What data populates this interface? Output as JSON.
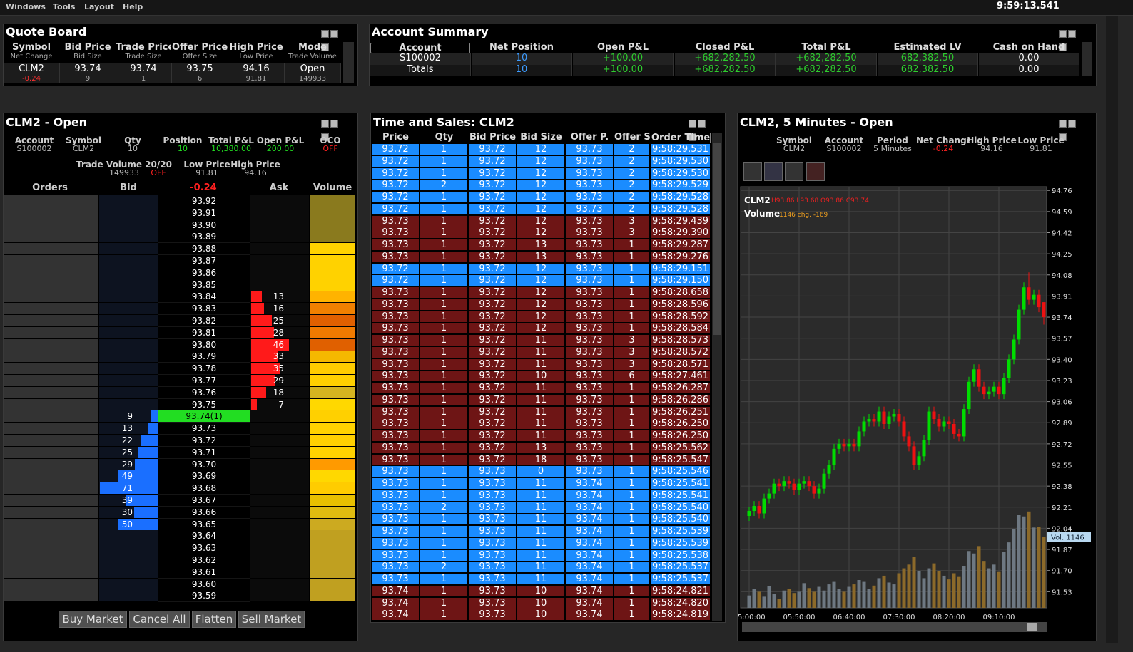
{
  "menu": {
    "items": [
      "Windows",
      "Tools",
      "Layout",
      "Help"
    ],
    "clock": "9:59:13.541"
  },
  "quote_board": {
    "title": "Quote Board",
    "headers": [
      [
        "Symbol",
        "Net Change"
      ],
      [
        "Bid Price",
        "Bid Size"
      ],
      [
        "Trade Price",
        "Trade Size"
      ],
      [
        "Offer Price",
        "Offer Size"
      ],
      [
        "High Price",
        "Low Price"
      ],
      [
        "Mode",
        "Trade Volume"
      ]
    ],
    "row": [
      [
        "CLM2",
        "-0.24"
      ],
      [
        "93.74",
        "9"
      ],
      [
        "93.74",
        "1"
      ],
      [
        "93.75",
        "6"
      ],
      [
        "94.16",
        "91.81"
      ],
      [
        "Open",
        "149933"
      ]
    ]
  },
  "account_summary": {
    "title": "Account Summary",
    "headers": [
      "Account",
      "Net Position",
      "Open P&L",
      "Closed P&L",
      "Total P&L",
      "Estimated LV",
      "Cash on Hand"
    ],
    "rows": [
      [
        "S100002",
        "10",
        "+100.00",
        "+682,282.50",
        "+682,282.50",
        "682,382.50",
        "0.00"
      ],
      [
        "Totals",
        "10",
        "+100.00",
        "+682,282.50",
        "+682,282.50",
        "682,382.50",
        "0.00"
      ]
    ],
    "colors": [
      "#ffffff",
      "#3d9cff",
      "#2ecc2e",
      "#2ecc2e",
      "#2ecc2e",
      "#2ecc2e",
      "#ffffff"
    ]
  },
  "dom": {
    "title": "CLM2 - Open",
    "fields": [
      {
        "label": "Account",
        "value": "S100002",
        "color": "#bbbbbb"
      },
      {
        "label": "Symbol",
        "value": "CLM2",
        "color": "#bbbbbb"
      },
      {
        "label": "Qty",
        "value": "10",
        "color": "#bbbbbb"
      },
      {
        "label": "Position",
        "value": "10",
        "color": "#22dd22"
      },
      {
        "label": "Total P&L",
        "value": "10,380.00",
        "color": "#22dd22"
      },
      {
        "label": "Open P&L",
        "value": "200.00",
        "color": "#22dd22"
      },
      {
        "label": "OCO",
        "value": "OFF",
        "color": "#ff2020"
      }
    ],
    "fields2": [
      {
        "label": "Trade Volume 20/20",
        "value": "149933",
        "color": "#bbbbbb"
      },
      {
        "label": "Low Price",
        "value": "91.81",
        "color": "#bbbbbb"
      },
      {
        "label": "High Price",
        "value": "94.16",
        "color": "#bbbbbb"
      }
    ],
    "trade_volume_state": "OFF",
    "columns": [
      "Orders",
      "Bid",
      "-0.24",
      "Ask",
      "Volume"
    ],
    "prices": [
      "93.92",
      "93.91",
      "93.90",
      "93.89",
      "93.88",
      "93.87",
      "93.86",
      "93.85",
      "93.84",
      "93.83",
      "93.82",
      "93.81",
      "93.80",
      "93.79",
      "93.78",
      "93.77",
      "93.76",
      "93.75",
      "93.74(1)",
      "93.73",
      "93.72",
      "93.71",
      "93.70",
      "93.69",
      "93.68",
      "93.67",
      "93.66",
      "93.65",
      "93.64",
      "93.63",
      "93.62",
      "93.61",
      "93.60",
      "93.59"
    ],
    "bid_sizes": [
      null,
      null,
      null,
      null,
      null,
      null,
      null,
      null,
      null,
      null,
      null,
      null,
      null,
      null,
      null,
      null,
      null,
      null,
      9,
      13,
      22,
      25,
      29,
      49,
      71,
      39,
      30,
      50,
      null,
      null,
      null,
      null,
      null,
      null
    ],
    "ask_sizes": [
      null,
      null,
      null,
      null,
      null,
      null,
      null,
      null,
      13,
      16,
      25,
      28,
      46,
      33,
      35,
      29,
      18,
      7,
      null,
      null,
      null,
      null,
      null,
      null,
      null,
      null,
      null,
      null,
      null,
      null,
      null,
      null,
      null,
      null
    ],
    "volume_colors": [
      "#8a7a1e",
      "#8a7a1e",
      "#8a7a1e",
      "#8a7a1e",
      "#ffd200",
      "#ffd200",
      "#ffd200",
      "#ffd200",
      "#ffb300",
      "#f08000",
      "#e06000",
      "#f07a00",
      "#e06000",
      "#f5b800",
      "#ffcc00",
      "#ffd000",
      "#d4b420",
      "#ffd800",
      "#ffd000",
      "#ffd200",
      "#ffd000",
      "#ffd200",
      "#ff9a00",
      "#ffd800",
      "#ffcc00",
      "#e8c000",
      "#e0bc10",
      "#ccaa20",
      "#c0a020",
      "#c0a020",
      "#c0a020",
      "#c0a020",
      "#c0a020",
      "#c0a020"
    ],
    "buttons": [
      "Buy Market",
      "Cancel All",
      "Flatten",
      "Sell Market"
    ]
  },
  "time_and_sales": {
    "title": "Time and Sales: CLM2",
    "headers": [
      "Price",
      "Qty",
      "Bid Price",
      "Bid Size",
      "Offer P.",
      "Offer Sz",
      "Order Time"
    ],
    "rows": [
      [
        "93.72",
        "1",
        "93.72",
        "12",
        "93.73",
        "2",
        "9:58:29.531"
      ],
      [
        "93.72",
        "1",
        "93.72",
        "12",
        "93.73",
        "2",
        "9:58:29.530"
      ],
      [
        "93.72",
        "1",
        "93.72",
        "12",
        "93.73",
        "2",
        "9:58:29.530"
      ],
      [
        "93.72",
        "2",
        "93.72",
        "12",
        "93.73",
        "2",
        "9:58:29.529"
      ],
      [
        "93.72",
        "1",
        "93.72",
        "12",
        "93.73",
        "2",
        "9:58:29.528"
      ],
      [
        "93.72",
        "1",
        "93.72",
        "12",
        "93.73",
        "2",
        "9:58:29.528"
      ],
      [
        "93.73",
        "1",
        "93.72",
        "12",
        "93.73",
        "3",
        "9:58:29.439"
      ],
      [
        "93.73",
        "1",
        "93.72",
        "12",
        "93.73",
        "3",
        "9:58:29.390"
      ],
      [
        "93.73",
        "1",
        "93.72",
        "13",
        "93.73",
        "1",
        "9:58:29.287"
      ],
      [
        "93.73",
        "1",
        "93.72",
        "13",
        "93.73",
        "1",
        "9:58:29.276"
      ],
      [
        "93.72",
        "1",
        "93.72",
        "12",
        "93.73",
        "1",
        "9:58:29.151"
      ],
      [
        "93.72",
        "1",
        "93.72",
        "12",
        "93.73",
        "1",
        "9:58:29.150"
      ],
      [
        "93.73",
        "1",
        "93.72",
        "12",
        "93.73",
        "1",
        "9:58:28.658"
      ],
      [
        "93.73",
        "1",
        "93.72",
        "12",
        "93.73",
        "1",
        "9:58:28.596"
      ],
      [
        "93.73",
        "1",
        "93.72",
        "12",
        "93.73",
        "1",
        "9:58:28.592"
      ],
      [
        "93.73",
        "1",
        "93.72",
        "12",
        "93.73",
        "1",
        "9:58:28.584"
      ],
      [
        "93.73",
        "1",
        "93.72",
        "11",
        "93.73",
        "3",
        "9:58:28.573"
      ],
      [
        "93.73",
        "1",
        "93.72",
        "11",
        "93.73",
        "3",
        "9:58:28.572"
      ],
      [
        "93.73",
        "1",
        "93.72",
        "11",
        "93.73",
        "3",
        "9:58:28.571"
      ],
      [
        "93.73",
        "1",
        "93.72",
        "10",
        "93.73",
        "6",
        "9:58:27.461"
      ],
      [
        "93.73",
        "1",
        "93.72",
        "11",
        "93.73",
        "1",
        "9:58:26.287"
      ],
      [
        "93.73",
        "1",
        "93.72",
        "11",
        "93.73",
        "1",
        "9:58:26.286"
      ],
      [
        "93.73",
        "1",
        "93.72",
        "11",
        "93.73",
        "1",
        "9:58:26.251"
      ],
      [
        "93.73",
        "1",
        "93.72",
        "11",
        "93.73",
        "1",
        "9:58:26.250"
      ],
      [
        "93.73",
        "1",
        "93.72",
        "11",
        "93.73",
        "1",
        "9:58:26.250"
      ],
      [
        "93.73",
        "1",
        "93.72",
        "13",
        "93.73",
        "1",
        "9:58:25.562"
      ],
      [
        "93.73",
        "1",
        "93.72",
        "18",
        "93.73",
        "1",
        "9:58:25.547"
      ],
      [
        "93.73",
        "1",
        "93.73",
        "0",
        "93.73",
        "1",
        "9:58:25.546"
      ],
      [
        "93.73",
        "1",
        "93.73",
        "11",
        "93.74",
        "1",
        "9:58:25.541"
      ],
      [
        "93.73",
        "1",
        "93.73",
        "11",
        "93.74",
        "1",
        "9:58:25.541"
      ],
      [
        "93.73",
        "2",
        "93.73",
        "11",
        "93.74",
        "1",
        "9:58:25.540"
      ],
      [
        "93.73",
        "1",
        "93.73",
        "11",
        "93.74",
        "1",
        "9:58:25.540"
      ],
      [
        "93.73",
        "1",
        "93.73",
        "11",
        "93.74",
        "1",
        "9:58:25.539"
      ],
      [
        "93.73",
        "1",
        "93.73",
        "11",
        "93.74",
        "1",
        "9:58:25.539"
      ],
      [
        "93.73",
        "1",
        "93.73",
        "11",
        "93.74",
        "1",
        "9:58:25.538"
      ],
      [
        "93.73",
        "2",
        "93.73",
        "11",
        "93.74",
        "1",
        "9:58:25.537"
      ],
      [
        "93.73",
        "1",
        "93.73",
        "11",
        "93.74",
        "1",
        "9:58:25.537"
      ],
      [
        "93.74",
        "1",
        "93.73",
        "10",
        "93.74",
        "1",
        "9:58:24.821"
      ],
      [
        "93.74",
        "1",
        "93.73",
        "10",
        "93.74",
        "1",
        "9:58:24.820"
      ],
      [
        "93.74",
        "1",
        "93.73",
        "10",
        "93.74",
        "1",
        "9:58:24.819"
      ]
    ]
  },
  "chart_data": {
    "type": "candlestick",
    "title": "CLM2, 5 Minutes - Open",
    "fields": [
      {
        "label": "Symbol",
        "value": "CLM2",
        "color": "#bbbbbb"
      },
      {
        "label": "Account",
        "value": "S100002",
        "color": "#bbbbbb"
      },
      {
        "label": "Period",
        "value": "5 Minutes",
        "color": "#bbbbbb"
      },
      {
        "label": "Net Change",
        "value": "-0.24",
        "color": "#ff2020"
      },
      {
        "label": "High Price",
        "value": "94.16",
        "color": "#bbbbbb"
      },
      {
        "label": "Low Price",
        "value": "91.81",
        "color": "#bbbbbb"
      }
    ],
    "legend": {
      "symbol": "CLM2",
      "ohlc": "H93.86 L93.68 O93.86 C93.74",
      "volume": "Volume",
      "volume_info": "1146 chg. -169"
    },
    "categories": [
      "5:00:00",
      null,
      null,
      null,
      null,
      null,
      null,
      null,
      null,
      null,
      "05:50:00",
      null,
      null,
      null,
      null,
      null,
      null,
      null,
      null,
      null,
      "06:40:00",
      null,
      null,
      null,
      null,
      null,
      null,
      null,
      null,
      null,
      "07:30:00",
      null,
      null,
      null,
      null,
      null,
      null,
      null,
      null,
      null,
      "08:20:00",
      null,
      null,
      null,
      null,
      null,
      null,
      null,
      null,
      null,
      "09:10:00",
      null,
      null,
      null,
      null,
      null,
      null,
      null,
      null,
      null
    ],
    "open": [
      92.14,
      92.18,
      92.22,
      92.16,
      92.28,
      92.32,
      92.4,
      92.38,
      92.42,
      92.4,
      92.35,
      92.4,
      92.42,
      92.38,
      92.32,
      92.36,
      92.48,
      92.55,
      92.68,
      92.72,
      92.7,
      92.72,
      92.7,
      92.82,
      92.9,
      92.92,
      92.9,
      92.98,
      92.88,
      92.94,
      92.96,
      92.9,
      92.78,
      92.7,
      92.55,
      92.62,
      92.75,
      92.98,
      92.92,
      92.86,
      92.9,
      92.88,
      92.8,
      92.78,
      93.0,
      93.22,
      93.32,
      93.18,
      93.12,
      93.14,
      93.18,
      93.12,
      93.25,
      93.4,
      93.56,
      93.8,
      93.98,
      93.88,
      93.92,
      93.86
    ],
    "high": [
      92.21,
      92.26,
      92.26,
      92.32,
      92.36,
      92.44,
      92.44,
      92.46,
      92.46,
      92.44,
      92.44,
      92.46,
      92.46,
      92.42,
      92.4,
      92.52,
      92.59,
      92.72,
      92.76,
      92.76,
      92.76,
      92.76,
      92.86,
      92.94,
      92.96,
      92.96,
      93.02,
      93.02,
      92.98,
      93.0,
      93.0,
      92.94,
      92.82,
      92.74,
      92.66,
      92.79,
      93.02,
      93.02,
      92.96,
      92.94,
      92.94,
      92.92,
      92.84,
      93.04,
      93.26,
      93.36,
      93.36,
      93.22,
      93.18,
      93.22,
      93.22,
      93.29,
      93.44,
      93.6,
      93.84,
      94.02,
      94.1,
      93.96,
      93.96,
      93.86
    ],
    "low": [
      92.1,
      92.14,
      92.12,
      92.12,
      92.24,
      92.28,
      92.34,
      92.34,
      92.36,
      92.31,
      92.31,
      92.36,
      92.34,
      92.28,
      92.28,
      92.32,
      92.44,
      92.51,
      92.64,
      92.66,
      92.66,
      92.66,
      92.66,
      92.78,
      92.86,
      92.86,
      92.86,
      92.84,
      92.84,
      92.9,
      92.86,
      92.74,
      92.66,
      92.51,
      92.51,
      92.58,
      92.71,
      92.88,
      92.82,
      92.82,
      92.84,
      92.76,
      92.74,
      92.74,
      92.96,
      93.18,
      93.14,
      93.08,
      93.08,
      93.1,
      93.08,
      93.08,
      93.21,
      93.36,
      93.52,
      93.76,
      93.84,
      93.84,
      93.78,
      93.68
    ],
    "close": [
      92.18,
      92.22,
      92.16,
      92.28,
      92.32,
      92.4,
      92.38,
      92.42,
      92.4,
      92.35,
      92.4,
      92.42,
      92.38,
      92.32,
      92.36,
      92.48,
      92.55,
      92.68,
      92.72,
      92.7,
      92.72,
      92.7,
      92.82,
      92.9,
      92.92,
      92.9,
      92.98,
      92.88,
      92.94,
      92.96,
      92.9,
      92.78,
      92.7,
      92.55,
      92.62,
      92.75,
      92.98,
      92.92,
      92.86,
      92.9,
      92.88,
      92.8,
      92.78,
      93.0,
      93.22,
      93.32,
      93.18,
      93.12,
      93.14,
      93.18,
      93.12,
      93.25,
      93.4,
      93.56,
      93.8,
      93.98,
      93.88,
      93.92,
      93.82,
      93.74
    ],
    "volume": [
      200,
      310,
      260,
      180,
      350,
      220,
      150,
      280,
      300,
      240,
      260,
      400,
      320,
      260,
      340,
      280,
      380,
      420,
      300,
      260,
      340,
      380,
      450,
      420,
      300,
      360,
      480,
      520,
      410,
      380,
      560,
      640,
      700,
      820,
      600,
      480,
      640,
      720,
      590,
      520,
      460,
      560,
      500,
      680,
      920,
      880,
      1000,
      760,
      640,
      700,
      580,
      900,
      1060,
      1280,
      1500,
      1480,
      1560,
      1300,
      1315,
      1146
    ],
    "up_color": "#00dd00",
    "down_color": "#ee1111",
    "volume_up_color": "#6e7882",
    "volume_down_color": "#8c6a2a",
    "ylim": [
      91.4,
      94.79
    ],
    "yticks": [
      94.76,
      94.59,
      94.42,
      94.25,
      94.08,
      93.91,
      93.74,
      93.57,
      {
        "value": 93.4,
        "label": "93.40"
      },
      93.23,
      93.06,
      92.89,
      92.72,
      92.55,
      92.38,
      92.21,
      92.04,
      91.87,
      {
        "value": 91.7,
        "label": "91.70"
      },
      91.53
    ],
    "volume_lim": [
      0,
      1650
    ],
    "volume_label": "Vol. 1146",
    "grid": true
  }
}
